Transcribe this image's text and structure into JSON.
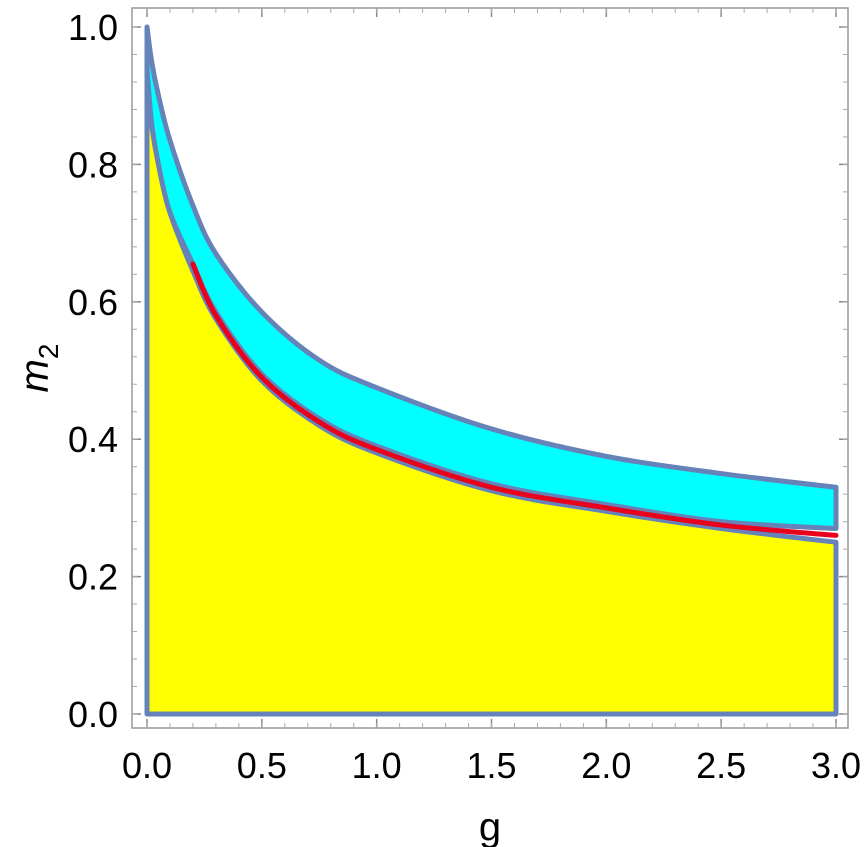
{
  "chart_data": {
    "type": "area",
    "title": "",
    "xlabel": "g",
    "ylabel_main": "m",
    "ylabel_sub": "2",
    "xlim": [
      0.0,
      3.0
    ],
    "ylim": [
      0.0,
      1.0
    ],
    "x_ticks": [
      "0.0",
      "0.5",
      "1.0",
      "1.5",
      "2.0",
      "2.5",
      "3.0"
    ],
    "y_ticks": [
      "0.0",
      "0.2",
      "0.4",
      "0.6",
      "0.8",
      "1.0"
    ],
    "grid": false,
    "legend": "none",
    "colors": {
      "yellow_region": "#ffff00",
      "cyan_region": "#00ffff",
      "boundary": "#6583b8",
      "red_curve": "#e8001c",
      "frame": "#999999"
    },
    "regions": [
      {
        "color_key": "yellow_region",
        "description_values": "region under lower boundary m2_lower(g)",
        "x": [
          0.0,
          0.02,
          0.05,
          0.1,
          0.2,
          0.3,
          0.5,
          0.75,
          1.0,
          1.5,
          2.0,
          2.5,
          3.0
        ],
        "y": [
          0.94,
          0.86,
          0.8,
          0.73,
          0.645,
          0.575,
          0.485,
          0.42,
          0.38,
          0.325,
          0.295,
          0.27,
          0.25
        ]
      },
      {
        "color_key": "cyan_region",
        "x": [
          0.0,
          0.02,
          0.05,
          0.1,
          0.2,
          0.3,
          0.5,
          0.75,
          1.0,
          1.5,
          2.0,
          2.5,
          3.0
        ],
        "y_upper": [
          1.0,
          0.95,
          0.9,
          0.835,
          0.74,
          0.67,
          0.585,
          0.515,
          0.475,
          0.415,
          0.375,
          0.35,
          0.33
        ],
        "y_lower": [
          0.94,
          0.86,
          0.8,
          0.73,
          0.655,
          0.585,
          0.495,
          0.43,
          0.39,
          0.335,
          0.305,
          0.28,
          0.27
        ]
      }
    ],
    "series": [
      {
        "color_key": "red_curve",
        "x": [
          0.2,
          0.3,
          0.5,
          0.75,
          1.0,
          1.5,
          2.0,
          2.5,
          3.0
        ],
        "y": [
          0.655,
          0.58,
          0.49,
          0.425,
          0.385,
          0.33,
          0.3,
          0.275,
          0.26
        ]
      }
    ]
  }
}
